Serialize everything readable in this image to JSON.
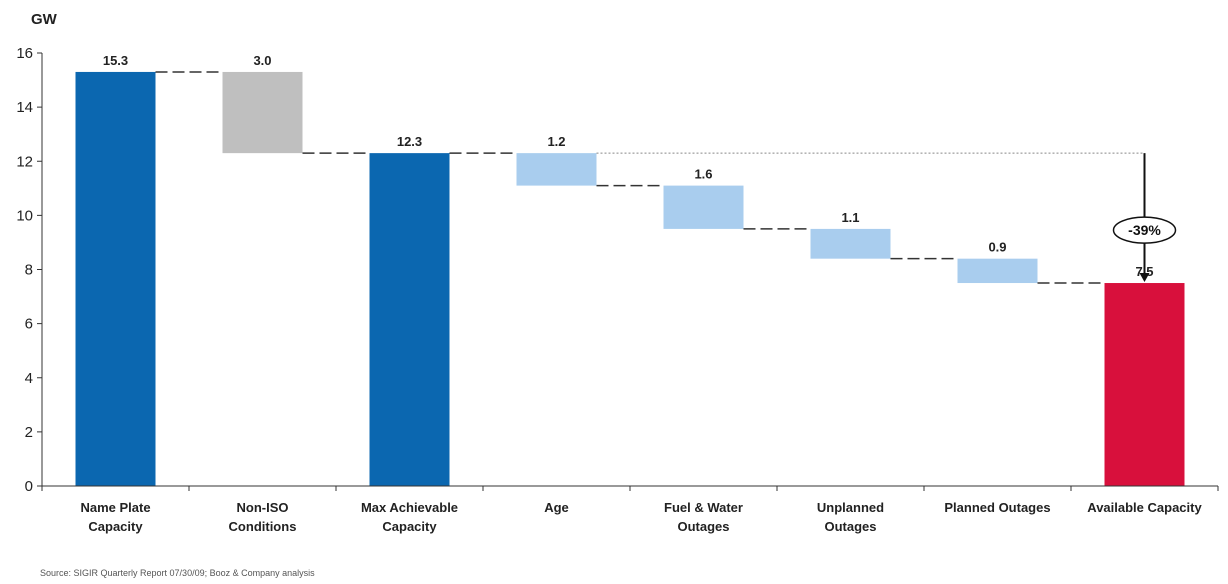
{
  "chart_data": {
    "type": "bar",
    "subtype": "waterfall",
    "unit_label": "GW",
    "ylim": [
      0,
      16
    ],
    "yticks": [
      0,
      2,
      4,
      6,
      8,
      10,
      12,
      14,
      16
    ],
    "grid": false,
    "categories": [
      [
        "Name Plate",
        "Capacity"
      ],
      [
        "Non-ISO",
        "Conditions"
      ],
      [
        "Max Achievable",
        "Capacity"
      ],
      [
        "Age"
      ],
      [
        "Fuel & Water",
        "Outages"
      ],
      [
        "Unplanned",
        "Outages"
      ],
      [
        "Planned Outages"
      ],
      [
        "Available Capacity"
      ]
    ],
    "bars": [
      {
        "kind": "total",
        "low": 0,
        "high": 15.3,
        "label": "15.3",
        "color": "#0b67b0"
      },
      {
        "kind": "decrease",
        "low": 12.3,
        "high": 15.3,
        "label": "3.0",
        "color": "#bfbfbf"
      },
      {
        "kind": "total",
        "low": 0,
        "high": 12.3,
        "label": "12.3",
        "color": "#0b67b0"
      },
      {
        "kind": "decrease",
        "low": 11.1,
        "high": 12.3,
        "label": "1.2",
        "color": "#a9cdee"
      },
      {
        "kind": "decrease",
        "low": 9.5,
        "high": 11.1,
        "label": "1.6",
        "color": "#a9cdee"
      },
      {
        "kind": "decrease",
        "low": 8.4,
        "high": 9.5,
        "label": "1.1",
        "color": "#a9cdee"
      },
      {
        "kind": "decrease",
        "low": 7.5,
        "high": 8.4,
        "label": "0.9",
        "color": "#a9cdee"
      },
      {
        "kind": "total",
        "low": 0,
        "high": 7.5,
        "label": "7.5",
        "color": "#d8103c"
      }
    ],
    "annotation": {
      "text": "-39%",
      "from": 12.3,
      "to": 7.5
    }
  },
  "source": "Source:   SIGIR Quarterly Report 07/30/09; Booz & Company analysis"
}
